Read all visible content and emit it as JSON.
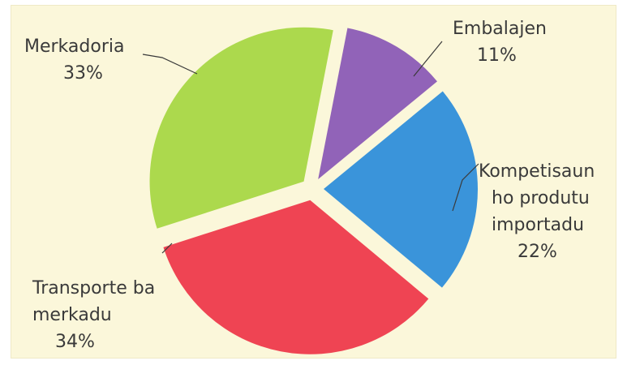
{
  "chart_data": {
    "type": "pie",
    "title": "",
    "slices": [
      {
        "label_lines": [
          "Embalajen"
        ],
        "value_label": "11%",
        "value": 11,
        "color": "#9163b8"
      },
      {
        "label_lines": [
          "Kompetisaun",
          "ho produtu",
          "importadu"
        ],
        "value_label": "22%",
        "value": 22,
        "color": "#3a94da"
      },
      {
        "label_lines": [
          "Transporte ba",
          "merkadu"
        ],
        "value_label": "34%",
        "value": 34,
        "color": "#ef4453"
      },
      {
        "label_lines": [
          "Merkadoria"
        ],
        "value_label": "33%",
        "value": 33,
        "color": "#acd94d"
      }
    ],
    "exploded": true,
    "background_color": "#fbf7da",
    "legend": "none"
  }
}
